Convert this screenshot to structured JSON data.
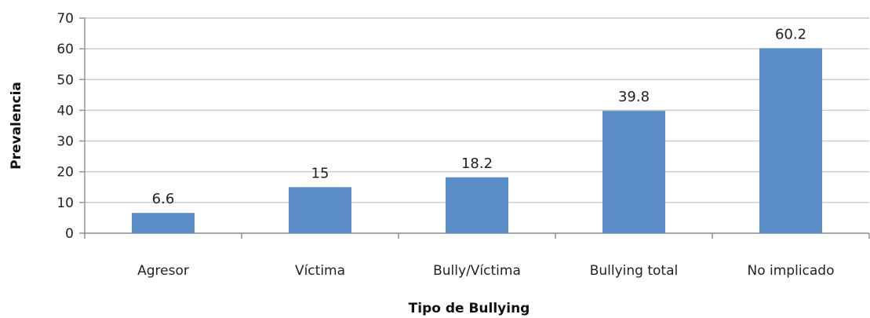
{
  "chart_data": {
    "type": "bar",
    "title": "",
    "xlabel": "Tipo de Bullying",
    "ylabel": "Prevalencia",
    "categories": [
      "Agresor",
      "Víctima",
      "Bully/Víctima",
      "Bullying total",
      "No implicado"
    ],
    "values": [
      6.6,
      15,
      18.2,
      39.8,
      60.2
    ],
    "data_labels": [
      "6.6",
      "15",
      "18.2",
      "39.8",
      "60.2"
    ],
    "ylim": [
      0,
      70
    ],
    "yticks": [
      0,
      10,
      20,
      30,
      40,
      50,
      60,
      70
    ],
    "grid": true,
    "legend": "none",
    "colors": {
      "bar": "#5B8DC8",
      "grid": "#C8C8C8",
      "axis": "#8C8C8C"
    }
  }
}
